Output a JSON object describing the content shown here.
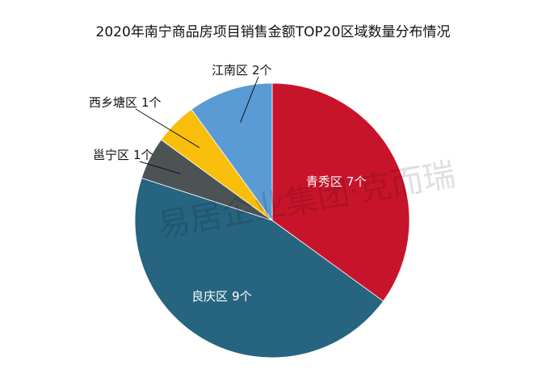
{
  "chart_data": {
    "type": "pie",
    "title": "2020年南宁商品房项目销售金额TOP20区域数量分布情况",
    "categories": [
      "青秀区",
      "良庆区",
      "邕宁区",
      "西乡塘区",
      "江南区"
    ],
    "values": [
      7,
      9,
      1,
      1,
      2
    ],
    "value_labels": [
      "7个",
      "9个",
      "1个",
      "1个",
      "2个"
    ],
    "colors": [
      "#c8142b",
      "#266480",
      "#4d5355",
      "#f9be0b",
      "#5b9bd5"
    ],
    "watermark": "易居企业集团·克而瑞"
  }
}
